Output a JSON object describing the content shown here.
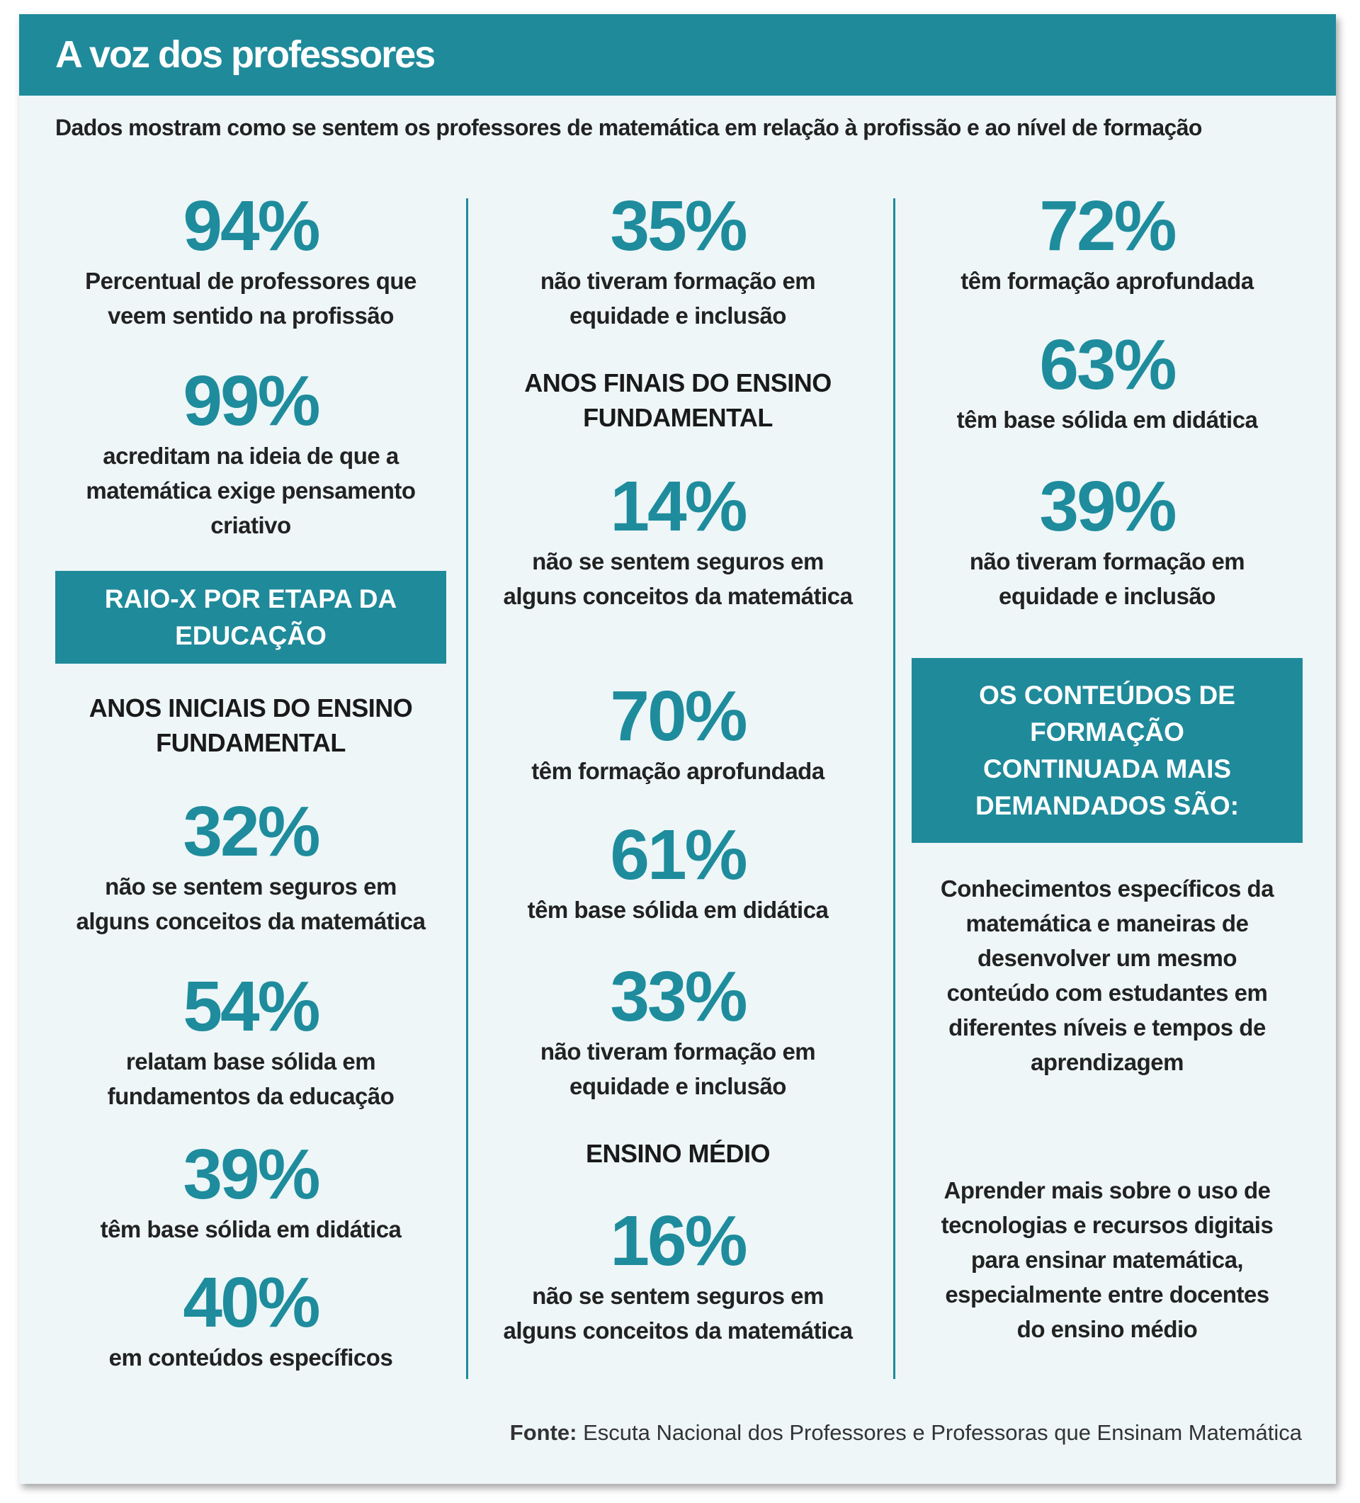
{
  "header": {
    "title": "A voz dos professores",
    "subtitle": "Dados mostram como se sentem os professores de matemática em relação à profissão e ao nível de formação"
  },
  "columns": [
    {
      "items": [
        {
          "value": "94%",
          "label": "Percentual de professores que veem sentido na profissão"
        },
        {
          "value": "99%",
          "label": "acreditam na ideia de que a matemática exige pensamento criativo"
        },
        {
          "box": "RAIO-X POR ETAPA DA EDUCAÇÃO"
        },
        {
          "heading": "ANOS INICIAIS DO ENSINO FUNDAMENTAL"
        },
        {
          "value": "32%",
          "label": "não se sentem seguros em alguns conceitos da matemática"
        },
        {
          "value": "54%",
          "label": "relatam base sólida em fundamentos da educação"
        },
        {
          "value": "39%",
          "label": "têm base sólida em didática"
        },
        {
          "value": "40%",
          "label": "em conteúdos específicos"
        }
      ]
    },
    {
      "items": [
        {
          "value": "35%",
          "label": "não tiveram formação em equidade e inclusão"
        },
        {
          "heading": "ANOS FINAIS DO ENSINO FUNDAMENTAL"
        },
        {
          "value": "14%",
          "label": "não se sentem seguros em alguns conceitos da matemática"
        },
        {
          "value": "70%",
          "label": "têm formação aprofundada"
        },
        {
          "value": "61%",
          "label": "têm base sólida em didática"
        },
        {
          "value": "33%",
          "label": "não tiveram formação em equidade e inclusão"
        },
        {
          "heading": "ENSINO MÉDIO"
        },
        {
          "value": "16%",
          "label": "não se sentem seguros em alguns conceitos da matemática"
        }
      ]
    },
    {
      "items": [
        {
          "value": "72%",
          "label": "têm formação aprofundada"
        },
        {
          "value": "63%",
          "label": "têm base sólida em didática"
        },
        {
          "value": "39%",
          "label": "não tiveram formação em equidade e inclusão"
        },
        {
          "box": "OS CONTEÚDOS DE FORMAÇÃO CONTINUADA MAIS DEMANDADOS SÃO:"
        },
        {
          "text": "Conhecimentos específicos da matemática e maneiras de desenvolver um mesmo conteúdo com estudantes em diferentes níveis e tempos de aprendizagem"
        },
        {
          "text": "Aprender mais sobre o uso de tecnologias e recursos digitais para ensinar matemática, especialmente entre docentes do ensino médio"
        }
      ]
    }
  ],
  "footer": {
    "label": "Fonte:",
    "text": "Escuta Nacional dos Professores e Professoras que Ensinam Matemática"
  }
}
